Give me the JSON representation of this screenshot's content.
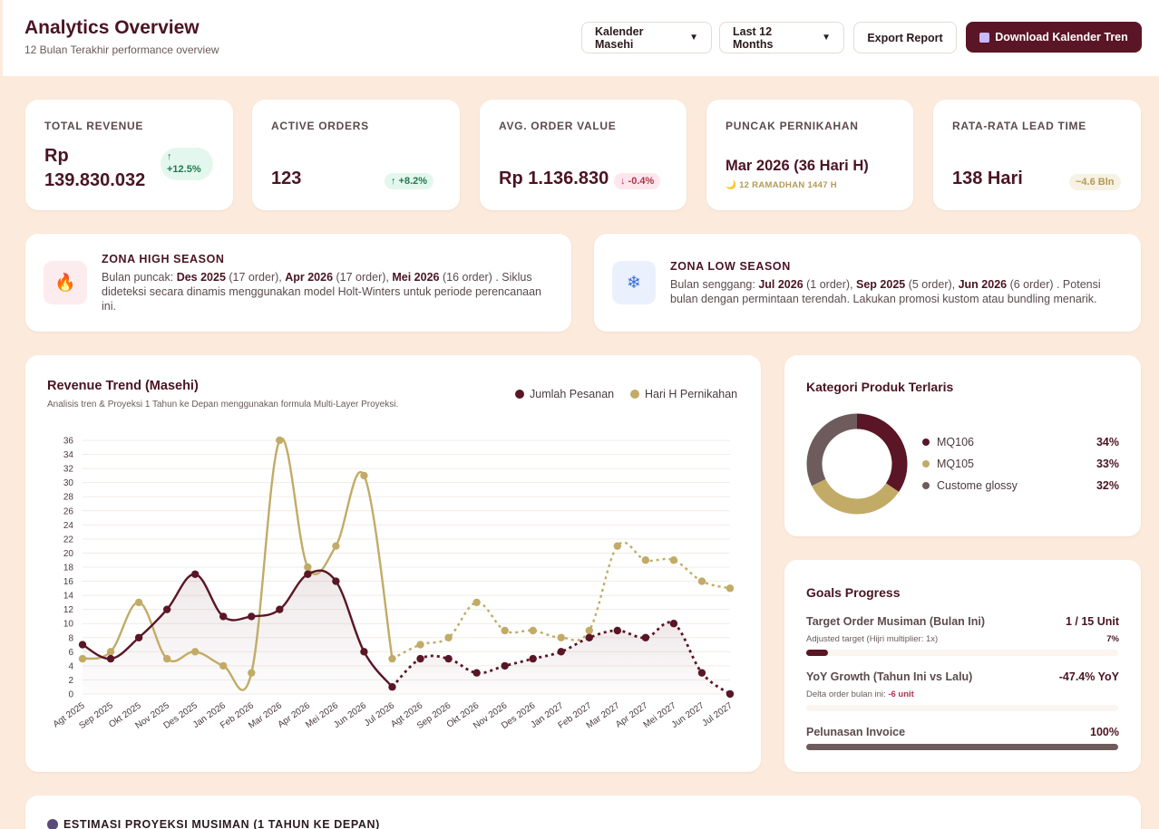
{
  "header": {
    "title": "Analytics Overview",
    "subtitle": "12 Bulan Terakhir performance overview",
    "calendar_select": "Kalender Masehi",
    "period_select": "Last 12 Months",
    "export_label": "Export Report",
    "download_label": "Download Kalender Tren"
  },
  "kpis": [
    {
      "label": "TOTAL REVENUE",
      "value_line1": "Rp",
      "value_line2": "139.830.032",
      "badge_arrow": "↑",
      "badge_text": "+12.5%"
    },
    {
      "label": "ACTIVE ORDERS",
      "value": "123",
      "badge": "↑ +8.2%"
    },
    {
      "label": "AVG. ORDER VALUE",
      "value": "Rp 1.136.830",
      "badge": "↓ -0.4%"
    },
    {
      "label": "PUNCAK PERNIKAHAN",
      "value": "Mar 2026 (36 Hari H)",
      "sub": "🌙 12 RAMADHAN 1447 H"
    },
    {
      "label": "RATA-RATA LEAD TIME",
      "value": "138 Hari",
      "badge": "~4.6 Bln"
    }
  ],
  "high_season": {
    "title": "ZONA HIGH SEASON",
    "p1": "Bulan puncak: ",
    "m1": "Des 2025",
    "c1": " (17 order), ",
    "m2": "Apr 2026",
    "c2": " (17 order), ",
    "m3": "Mei 2026",
    "c3": " (16 order) . Siklus dideteksi secara dinamis menggunakan model Holt-Winters untuk periode perencanaan ini."
  },
  "low_season": {
    "title": "ZONA LOW SEASON",
    "p1": "Bulan senggang: ",
    "m1": "Jul 2026",
    "c1": " (1 order), ",
    "m2": "Sep 2025",
    "c2": " (5 order), ",
    "m3": "Jun 2026",
    "c3": " (6 order) . Potensi bulan dengan permintaan terendah. Lakukan promosi kustom atau bundling menarik."
  },
  "trend": {
    "title": "Revenue Trend (Masehi)",
    "subtitle": "Analisis tren & Proyeksi 1 Tahun ke Depan menggunakan formula Multi-Layer Proyeksi.",
    "legend_orders": "Jumlah Pesanan",
    "legend_wedding": "Hari H Pernikahan"
  },
  "chart_data": {
    "type": "line",
    "categories": [
      "Agt 2025",
      "Sep 2025",
      "Okt 2025",
      "Nov 2025",
      "Des 2025",
      "Jan 2026",
      "Feb 2026",
      "Mar 2026",
      "Apr 2026",
      "Mei 2026",
      "Jun 2026",
      "Jul 2026",
      "Agt 2026",
      "Sep 2026",
      "Okt 2026",
      "Nov 2026",
      "Des 2026",
      "Jan 2027",
      "Feb 2027",
      "Mar 2027",
      "Apr 2027",
      "Mei 2027",
      "Jun 2027",
      "Jul 2027"
    ],
    "ylim": [
      0,
      36
    ],
    "yticks": [
      0,
      2,
      4,
      6,
      8,
      10,
      12,
      14,
      16,
      18,
      20,
      22,
      24,
      26,
      28,
      30,
      32,
      34,
      36
    ],
    "projection_start_index": 11,
    "colors": {
      "orders": "#5a1626",
      "wedding": "#c2ab66"
    },
    "series": [
      {
        "name": "Jumlah Pesanan",
        "values": [
          7,
          5,
          8,
          12,
          17,
          11,
          11,
          12,
          17,
          16,
          6,
          1,
          5,
          5,
          3,
          4,
          5,
          6,
          8,
          9,
          8,
          10,
          3,
          0
        ]
      },
      {
        "name": "Hari H Pernikahan",
        "values": [
          5,
          6,
          13,
          5,
          6,
          4,
          3,
          36,
          18,
          21,
          31,
          5,
          7,
          8,
          13,
          9,
          9,
          8,
          9,
          21,
          19,
          19,
          16,
          15
        ]
      }
    ]
  },
  "categories_card": {
    "title": "Kategori Produk Terlaris",
    "items": [
      {
        "name": "MQ106",
        "pct": "34%",
        "value": 34,
        "color": "#5a1626"
      },
      {
        "name": "MQ105",
        "pct": "33%",
        "value": 33,
        "color": "#c2ab66"
      },
      {
        "name": "Custome glossy",
        "pct": "32%",
        "value": 32,
        "color": "#6e5c5c"
      }
    ]
  },
  "goals": {
    "title": "Goals Progress",
    "items": [
      {
        "name": "Target Order Musiman (Bulan Ini)",
        "value": "1 / 15 Unit",
        "note": "Adjusted target (Hijri multiplier: 1x)",
        "pct": "7%",
        "progress": 0.07,
        "color": "#5a1626"
      },
      {
        "name": "YoY Growth (Tahun Ini vs Lalu)",
        "value": "-47.4% YoY",
        "note_prefix": "Delta order bulan ini: ",
        "note_value": "-6 unit",
        "progress": 0,
        "color": "#b3324e"
      },
      {
        "name": "Pelunasan Invoice",
        "value": "100%",
        "progress": 1.0,
        "color": "#6e5c5c"
      }
    ]
  },
  "projection": {
    "title": "ESTIMASI PROYEKSI MUSIMAN (1 TAHUN KE DEPAN)"
  }
}
